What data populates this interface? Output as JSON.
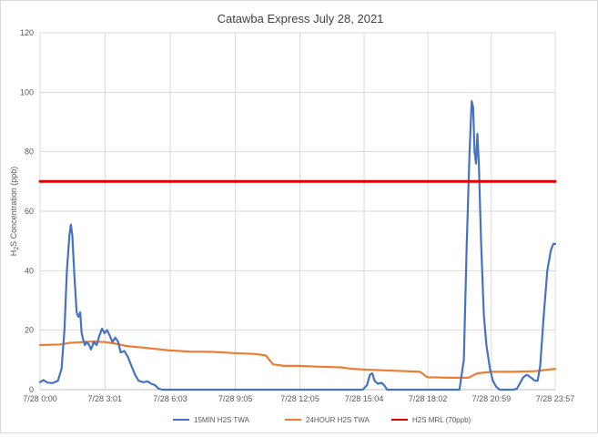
{
  "chart_data": {
    "type": "line",
    "title": "Catawba Express July 28, 2021",
    "ylabel": {
      "prefix": "H",
      "sub": "2",
      "rest": "S Concentration (ppb)"
    },
    "xlabel": "",
    "ylim": [
      0,
      120
    ],
    "yticks": [
      0,
      20,
      40,
      60,
      80,
      100,
      120
    ],
    "xlim": [
      "0:00",
      "23:57"
    ],
    "xticks": [
      {
        "label": "7/28 0:00",
        "t": "0:00"
      },
      {
        "label": "7/28 3:01",
        "t": "3:01"
      },
      {
        "label": "7/28 6:03",
        "t": "6:03"
      },
      {
        "label": "7/28 9:05",
        "t": "9:05"
      },
      {
        "label": "7/28 12:05",
        "t": "12:05"
      },
      {
        "label": "7/28 15:04",
        "t": "15:04"
      },
      {
        "label": "7/28 18:02",
        "t": "18:02"
      },
      {
        "label": "7/28 20:59",
        "t": "20:59"
      },
      {
        "label": "7/28 23:57",
        "t": "23:57"
      }
    ],
    "grid": true,
    "legend_position": "bottom",
    "series": [
      {
        "name": "15MIN H2S TWA",
        "color": "#4472c4",
        "points": [
          [
            "0:00",
            2.5
          ],
          [
            "0:10",
            3.2
          ],
          [
            "0:20",
            2.4
          ],
          [
            "0:35",
            2.2
          ],
          [
            "0:50",
            3
          ],
          [
            "1:00",
            7
          ],
          [
            "1:08",
            20
          ],
          [
            "1:15",
            40
          ],
          [
            "1:22",
            52
          ],
          [
            "1:26",
            55.5
          ],
          [
            "1:30",
            52
          ],
          [
            "1:36",
            38
          ],
          [
            "1:42",
            26
          ],
          [
            "1:47",
            24.5
          ],
          [
            "1:52",
            26
          ],
          [
            "1:56",
            19
          ],
          [
            "2:00",
            17
          ],
          [
            "2:05",
            15
          ],
          [
            "2:10",
            16
          ],
          [
            "2:17",
            15
          ],
          [
            "2:22",
            13.5
          ],
          [
            "2:30",
            16
          ],
          [
            "2:38",
            15
          ],
          [
            "2:45",
            18
          ],
          [
            "2:53",
            20.5
          ],
          [
            "3:00",
            19
          ],
          [
            "3:07",
            20
          ],
          [
            "3:15",
            18
          ],
          [
            "3:22",
            16
          ],
          [
            "3:30",
            17.5
          ],
          [
            "3:38",
            16
          ],
          [
            "3:45",
            12.5
          ],
          [
            "3:55",
            13
          ],
          [
            "4:05",
            11
          ],
          [
            "4:15",
            8
          ],
          [
            "4:25",
            5
          ],
          [
            "4:35",
            3
          ],
          [
            "4:48",
            2.5
          ],
          [
            "5:00",
            2.8
          ],
          [
            "5:10",
            2
          ],
          [
            "5:20",
            1.6
          ],
          [
            "5:30",
            0.4
          ],
          [
            "5:40",
            0
          ],
          [
            "15:00",
            0
          ],
          [
            "15:12",
            1.5
          ],
          [
            "15:20",
            5
          ],
          [
            "15:27",
            5.5
          ],
          [
            "15:33",
            3
          ],
          [
            "15:42",
            2
          ],
          [
            "15:52",
            2.3
          ],
          [
            "16:00",
            1.5
          ],
          [
            "16:08",
            0
          ],
          [
            "19:30",
            0
          ],
          [
            "19:42",
            10
          ],
          [
            "19:50",
            48
          ],
          [
            "19:58",
            80
          ],
          [
            "20:04",
            97
          ],
          [
            "20:08",
            95
          ],
          [
            "20:12",
            80
          ],
          [
            "20:16",
            76
          ],
          [
            "20:20",
            86
          ],
          [
            "20:24",
            76
          ],
          [
            "20:30",
            50
          ],
          [
            "20:38",
            25
          ],
          [
            "20:45",
            15
          ],
          [
            "20:55",
            7
          ],
          [
            "21:03",
            3
          ],
          [
            "21:12",
            1
          ],
          [
            "21:22",
            0
          ],
          [
            "22:00",
            0
          ],
          [
            "22:10",
            0.3
          ],
          [
            "22:18",
            2
          ],
          [
            "22:28",
            4.2
          ],
          [
            "22:38",
            5
          ],
          [
            "22:50",
            4
          ],
          [
            "23:00",
            3
          ],
          [
            "23:08",
            3
          ],
          [
            "23:15",
            8
          ],
          [
            "23:25",
            25
          ],
          [
            "23:35",
            40
          ],
          [
            "23:45",
            47
          ],
          [
            "23:52",
            49
          ],
          [
            "23:57",
            49
          ]
        ]
      },
      {
        "name": "24HOUR H2S TWA",
        "color": "#ed7d31",
        "points": [
          [
            "0:00",
            15
          ],
          [
            "1:00",
            15.2
          ],
          [
            "1:20",
            15.7
          ],
          [
            "2:00",
            16
          ],
          [
            "2:30",
            16.2
          ],
          [
            "3:00",
            16
          ],
          [
            "3:30",
            15.5
          ],
          [
            "4:00",
            14.7
          ],
          [
            "5:00",
            14
          ],
          [
            "6:00",
            13.2
          ],
          [
            "7:00",
            12.8
          ],
          [
            "8:00",
            12.7
          ],
          [
            "9:00",
            12.3
          ],
          [
            "10:00",
            12
          ],
          [
            "10:30",
            11.5
          ],
          [
            "10:50",
            8.5
          ],
          [
            "11:20",
            8
          ],
          [
            "12:00",
            8
          ],
          [
            "13:00",
            7.7
          ],
          [
            "14:00",
            7.5
          ],
          [
            "14:30",
            7
          ],
          [
            "15:00",
            6.8
          ],
          [
            "16:00",
            6.5
          ],
          [
            "17:00",
            6.2
          ],
          [
            "17:40",
            6
          ],
          [
            "18:00",
            4.2
          ],
          [
            "19:00",
            4
          ],
          [
            "19:55",
            4
          ],
          [
            "20:20",
            5.5
          ],
          [
            "21:00",
            6
          ],
          [
            "22:00",
            6
          ],
          [
            "23:00",
            6.2
          ],
          [
            "23:57",
            7
          ]
        ]
      },
      {
        "name": "H2S MRL (70ppb)",
        "color": "#e00000",
        "points": [
          [
            "0:00",
            70
          ],
          [
            "23:57",
            70
          ]
        ]
      }
    ]
  }
}
